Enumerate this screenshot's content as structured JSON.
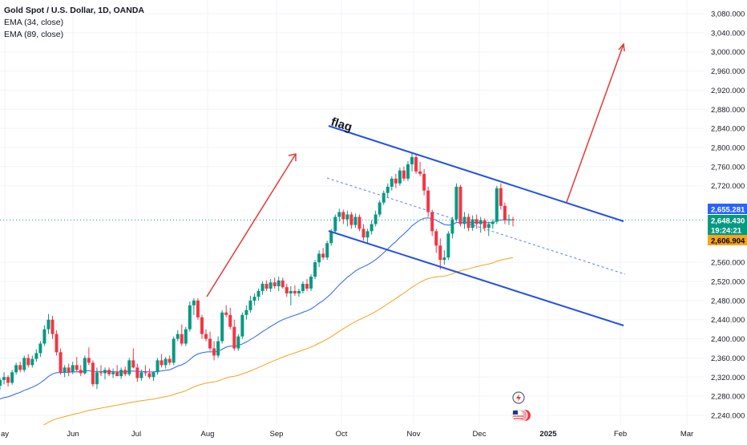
{
  "legend": {
    "symbol": "Gold Spot / U.S. Dollar, 1D, OANDA",
    "ema1": "EMA (34, close)",
    "ema2": "EMA (89, close)"
  },
  "annotation": "flag",
  "colors": {
    "up": "#089981",
    "down": "#f23645",
    "ema34": "#2962ff",
    "ema89": "#f7a31c",
    "channel": "#2250e6",
    "arrow": "#e53935",
    "grid": "#f0f3fa",
    "axis_text": "#131722"
  },
  "price_labels": [
    {
      "value": "2,655.281",
      "bg": "#2962ff",
      "fg": "#ffffff"
    },
    {
      "value": "2,648.430",
      "bg": "#089981",
      "fg": "#ffffff"
    },
    {
      "value": "19:24:21",
      "bg": "#089981",
      "fg": "#ffffff"
    },
    {
      "value": "2,606.904",
      "bg": "#f7a31c",
      "fg": "#000000"
    }
  ],
  "chart_data": {
    "type": "candlestick",
    "title": "Gold Spot / U.S. Dollar, 1D, OANDA",
    "ylim": [
      2224,
      3100
    ],
    "y_ticks": [
      3080,
      3040,
      3000,
      2960,
      2920,
      2880,
      2840,
      2800,
      2760,
      2720,
      2560,
      2520,
      2480,
      2440,
      2400,
      2360,
      2320,
      2280,
      2240
    ],
    "x_ticks": [
      "ay",
      "Jun",
      "Jul",
      "Aug",
      "Sep",
      "Oct",
      "Nov",
      "Dec",
      "2025",
      "Feb",
      "Mar"
    ],
    "grid": true,
    "series": [
      {
        "name": "EMA (34, close)",
        "last": 2655.281
      },
      {
        "name": "EMA (89, close)",
        "last": 2606.904
      }
    ],
    "last_price": 2648.43,
    "countdown": "19:24:21",
    "candles": [
      [
        2302,
        2318,
        2294,
        2314
      ],
      [
        2314,
        2330,
        2305,
        2320
      ],
      [
        2320,
        2324,
        2300,
        2308
      ],
      [
        2308,
        2335,
        2304,
        2330
      ],
      [
        2330,
        2350,
        2325,
        2345
      ],
      [
        2345,
        2352,
        2330,
        2335
      ],
      [
        2335,
        2365,
        2330,
        2360
      ],
      [
        2360,
        2368,
        2340,
        2345
      ],
      [
        2345,
        2365,
        2340,
        2358
      ],
      [
        2358,
        2378,
        2352,
        2370
      ],
      [
        2370,
        2395,
        2362,
        2390
      ],
      [
        2390,
        2428,
        2385,
        2420
      ],
      [
        2420,
        2452,
        2410,
        2440
      ],
      [
        2440,
        2448,
        2400,
        2410
      ],
      [
        2410,
        2418,
        2365,
        2372
      ],
      [
        2372,
        2380,
        2325,
        2330
      ],
      [
        2330,
        2345,
        2320,
        2340
      ],
      [
        2340,
        2348,
        2322,
        2330
      ],
      [
        2330,
        2352,
        2326,
        2345
      ],
      [
        2345,
        2362,
        2330,
        2335
      ],
      [
        2335,
        2345,
        2322,
        2328
      ],
      [
        2328,
        2365,
        2325,
        2360
      ],
      [
        2360,
        2382,
        2345,
        2350
      ],
      [
        2350,
        2355,
        2300,
        2305
      ],
      [
        2305,
        2340,
        2295,
        2330
      ],
      [
        2330,
        2345,
        2322,
        2328
      ],
      [
        2328,
        2340,
        2315,
        2335
      ],
      [
        2335,
        2340,
        2322,
        2326
      ],
      [
        2326,
        2338,
        2318,
        2330
      ],
      [
        2330,
        2345,
        2324,
        2322
      ],
      [
        2322,
        2340,
        2316,
        2335
      ],
      [
        2335,
        2342,
        2322,
        2326
      ],
      [
        2326,
        2360,
        2322,
        2355
      ],
      [
        2355,
        2380,
        2338,
        2340
      ],
      [
        2340,
        2348,
        2310,
        2318
      ],
      [
        2318,
        2336,
        2312,
        2330
      ],
      [
        2330,
        2345,
        2322,
        2328
      ],
      [
        2328,
        2338,
        2316,
        2320
      ],
      [
        2320,
        2332,
        2312,
        2330
      ],
      [
        2330,
        2360,
        2325,
        2355
      ],
      [
        2355,
        2368,
        2340,
        2345
      ],
      [
        2345,
        2362,
        2338,
        2358
      ],
      [
        2358,
        2365,
        2345,
        2350
      ],
      [
        2350,
        2405,
        2345,
        2400
      ],
      [
        2400,
        2418,
        2395,
        2410
      ],
      [
        2410,
        2430,
        2385,
        2390
      ],
      [
        2390,
        2425,
        2385,
        2420
      ],
      [
        2420,
        2478,
        2415,
        2470
      ],
      [
        2470,
        2485,
        2450,
        2480
      ],
      [
        2480,
        2485,
        2440,
        2445
      ],
      [
        2445,
        2450,
        2400,
        2410
      ],
      [
        2410,
        2420,
        2395,
        2400
      ],
      [
        2400,
        2415,
        2375,
        2380
      ],
      [
        2380,
        2395,
        2355,
        2365
      ],
      [
        2365,
        2405,
        2360,
        2395
      ],
      [
        2395,
        2460,
        2390,
        2455
      ],
      [
        2455,
        2470,
        2445,
        2450
      ],
      [
        2450,
        2465,
        2420,
        2425
      ],
      [
        2425,
        2440,
        2375,
        2380
      ],
      [
        2380,
        2410,
        2375,
        2405
      ],
      [
        2405,
        2455,
        2400,
        2450
      ],
      [
        2450,
        2470,
        2440,
        2460
      ],
      [
        2460,
        2490,
        2455,
        2480
      ],
      [
        2480,
        2495,
        2470,
        2488
      ],
      [
        2488,
        2505,
        2480,
        2500
      ],
      [
        2500,
        2520,
        2492,
        2515
      ],
      [
        2515,
        2522,
        2500,
        2505
      ],
      [
        2505,
        2525,
        2498,
        2518
      ],
      [
        2518,
        2528,
        2505,
        2510
      ],
      [
        2510,
        2530,
        2500,
        2522
      ],
      [
        2522,
        2528,
        2505,
        2508
      ],
      [
        2508,
        2515,
        2488,
        2495
      ],
      [
        2495,
        2510,
        2470,
        2500
      ],
      [
        2500,
        2512,
        2490,
        2495
      ],
      [
        2495,
        2505,
        2488,
        2500
      ],
      [
        2500,
        2520,
        2495,
        2515
      ],
      [
        2515,
        2525,
        2500,
        2505
      ],
      [
        2505,
        2535,
        2500,
        2530
      ],
      [
        2530,
        2565,
        2525,
        2560
      ],
      [
        2560,
        2585,
        2550,
        2578
      ],
      [
        2578,
        2590,
        2565,
        2570
      ],
      [
        2570,
        2605,
        2565,
        2600
      ],
      [
        2600,
        2630,
        2595,
        2625
      ],
      [
        2625,
        2660,
        2620,
        2655
      ],
      [
        2655,
        2672,
        2645,
        2665
      ],
      [
        2665,
        2670,
        2640,
        2650
      ],
      [
        2650,
        2668,
        2635,
        2660
      ],
      [
        2660,
        2665,
        2630,
        2638
      ],
      [
        2638,
        2662,
        2632,
        2655
      ],
      [
        2655,
        2660,
        2625,
        2630
      ],
      [
        2630,
        2640,
        2605,
        2612
      ],
      [
        2612,
        2630,
        2600,
        2625
      ],
      [
        2625,
        2648,
        2618,
        2640
      ],
      [
        2640,
        2668,
        2635,
        2660
      ],
      [
        2660,
        2690,
        2655,
        2685
      ],
      [
        2685,
        2710,
        2680,
        2705
      ],
      [
        2705,
        2725,
        2695,
        2718
      ],
      [
        2718,
        2740,
        2710,
        2735
      ],
      [
        2735,
        2745,
        2715,
        2725
      ],
      [
        2725,
        2758,
        2720,
        2752
      ],
      [
        2752,
        2760,
        2730,
        2735
      ],
      [
        2735,
        2772,
        2730,
        2765
      ],
      [
        2765,
        2790,
        2750,
        2780
      ],
      [
        2780,
        2785,
        2745,
        2750
      ],
      [
        2750,
        2770,
        2740,
        2745
      ],
      [
        2745,
        2755,
        2700,
        2710
      ],
      [
        2710,
        2718,
        2655,
        2665
      ],
      [
        2665,
        2670,
        2615,
        2625
      ],
      [
        2625,
        2630,
        2580,
        2595
      ],
      [
        2595,
        2610,
        2545,
        2565
      ],
      [
        2565,
        2585,
        2555,
        2570
      ],
      [
        2570,
        2625,
        2565,
        2620
      ],
      [
        2620,
        2655,
        2610,
        2650
      ],
      [
        2650,
        2725,
        2645,
        2718
      ],
      [
        2718,
        2722,
        2635,
        2640
      ],
      [
        2640,
        2665,
        2630,
        2655
      ],
      [
        2655,
        2662,
        2625,
        2632
      ],
      [
        2632,
        2658,
        2626,
        2650
      ],
      [
        2650,
        2660,
        2630,
        2640
      ],
      [
        2640,
        2655,
        2622,
        2648
      ],
      [
        2648,
        2652,
        2625,
        2632
      ],
      [
        2632,
        2645,
        2615,
        2640
      ],
      [
        2640,
        2650,
        2630,
        2645
      ],
      [
        2645,
        2720,
        2640,
        2715
      ],
      [
        2715,
        2725,
        2670,
        2678
      ],
      [
        2678,
        2685,
        2640,
        2648
      ],
      [
        2648,
        2660,
        2638,
        2650
      ],
      [
        2650,
        2655,
        2635,
        2648
      ]
    ]
  }
}
